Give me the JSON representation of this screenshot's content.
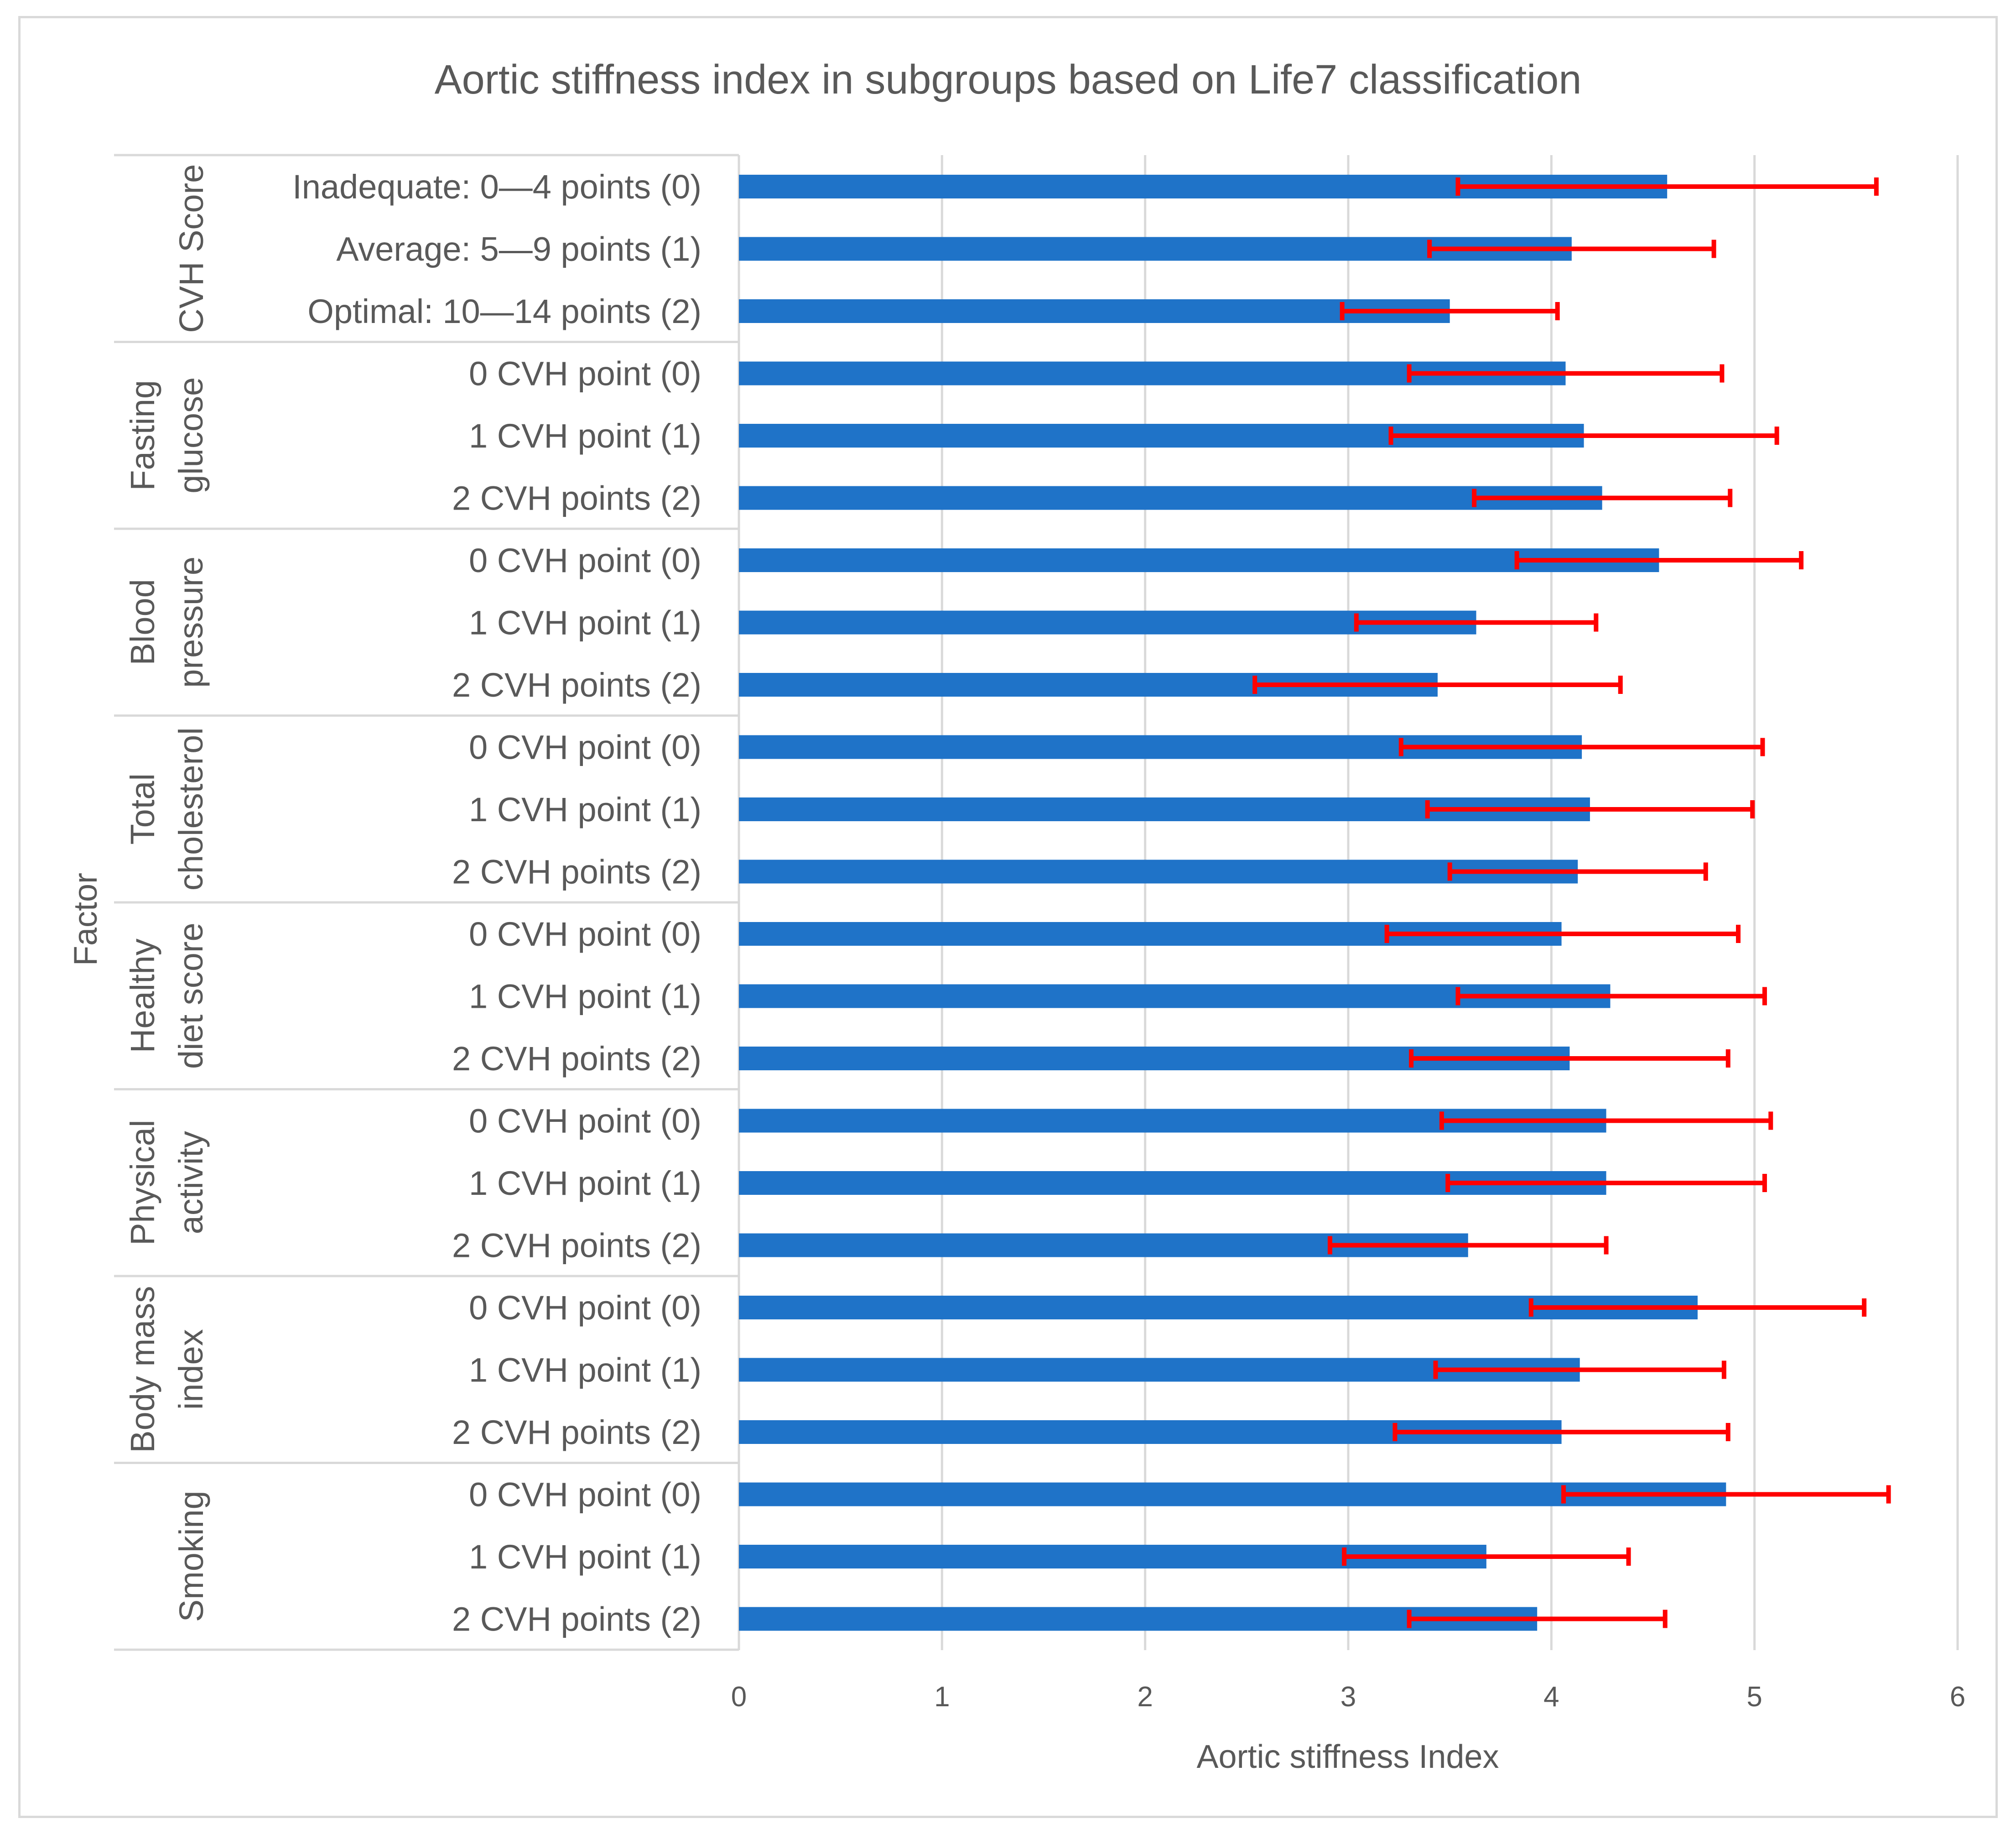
{
  "chart_data": {
    "type": "bar",
    "orientation": "horizontal",
    "title": "Aortic stiffness index in subgroups based on Life7 classification",
    "xlabel": "Aortic stiffness Index",
    "ylabel": "Factor",
    "xlim": [
      0,
      6
    ],
    "xticks": [
      "0",
      "1",
      "2",
      "3",
      "4",
      "5",
      "6"
    ],
    "grid": true,
    "legend": "none",
    "colors": {
      "bar": "#1f73c8",
      "error_bar": "#ff0000",
      "grid": "#d9d9d9",
      "text": "#595959"
    },
    "groups": [
      {
        "name": "CVH Score",
        "name_lines": [
          "CVH Score"
        ],
        "items": [
          {
            "label": "Inadequate: 0—4 points (0)",
            "value": 4.57,
            "low": 3.54,
            "high": 5.6
          },
          {
            "label": "Average: 5—9 points (1)",
            "value": 4.1,
            "low": 3.4,
            "high": 4.8
          },
          {
            "label": "Optimal: 10—14 points (2)",
            "value": 3.5,
            "low": 2.97,
            "high": 4.03
          }
        ]
      },
      {
        "name": "Fasting glucose",
        "name_lines": [
          "Fasting",
          "glucose"
        ],
        "items": [
          {
            "label": "0 CVH point (0)",
            "value": 4.07,
            "low": 3.3,
            "high": 4.84
          },
          {
            "label": "1 CVH point (1)",
            "value": 4.16,
            "low": 3.21,
            "high": 5.11
          },
          {
            "label": "2 CVH points (2)",
            "value": 4.25,
            "low": 3.62,
            "high": 4.88
          }
        ]
      },
      {
        "name": "Blood pressure",
        "name_lines": [
          "Blood",
          "pressure"
        ],
        "items": [
          {
            "label": "0 CVH point (0)",
            "value": 4.53,
            "low": 3.83,
            "high": 5.23
          },
          {
            "label": "1 CVH point (1)",
            "value": 3.63,
            "low": 3.04,
            "high": 4.22
          },
          {
            "label": "2 CVH points (2)",
            "value": 3.44,
            "low": 2.54,
            "high": 4.34
          }
        ]
      },
      {
        "name": "Total cholesterol",
        "name_lines": [
          "Total",
          "cholesterol"
        ],
        "items": [
          {
            "label": "0 CVH point (0)",
            "value": 4.15,
            "low": 3.26,
            "high": 5.04
          },
          {
            "label": "1 CVH point (1)",
            "value": 4.19,
            "low": 3.39,
            "high": 4.99
          },
          {
            "label": "2 CVH points (2)",
            "value": 4.13,
            "low": 3.5,
            "high": 4.76
          }
        ]
      },
      {
        "name": "Healthy diet score",
        "name_lines": [
          "Healthy",
          "diet score"
        ],
        "items": [
          {
            "label": "0 CVH point (0)",
            "value": 4.05,
            "low": 3.19,
            "high": 4.92
          },
          {
            "label": "1 CVH point (1)",
            "value": 4.29,
            "low": 3.54,
            "high": 5.05
          },
          {
            "label": "2 CVH points (2)",
            "value": 4.09,
            "low": 3.31,
            "high": 4.87
          }
        ]
      },
      {
        "name": "Physical activity",
        "name_lines": [
          "Physical",
          "activity"
        ],
        "items": [
          {
            "label": "0 CVH point (0)",
            "value": 4.27,
            "low": 3.46,
            "high": 5.08
          },
          {
            "label": "1 CVH point (1)",
            "value": 4.27,
            "low": 3.49,
            "high": 5.05
          },
          {
            "label": "2 CVH points (2)",
            "value": 3.59,
            "low": 2.91,
            "high": 4.27
          }
        ]
      },
      {
        "name": "Body mass index",
        "name_lines": [
          "Body mass",
          "index"
        ],
        "items": [
          {
            "label": "0 CVH point (0)",
            "value": 4.72,
            "low": 3.9,
            "high": 5.54
          },
          {
            "label": "1 CVH point (1)",
            "value": 4.14,
            "low": 3.43,
            "high": 4.85
          },
          {
            "label": "2 CVH points (2)",
            "value": 4.05,
            "low": 3.23,
            "high": 4.87
          }
        ]
      },
      {
        "name": "Smoking",
        "name_lines": [
          "Smoking"
        ],
        "items": [
          {
            "label": "0 CVH point (0)",
            "value": 4.86,
            "low": 4.06,
            "high": 5.66
          },
          {
            "label": "1 CVH point (1)",
            "value": 3.68,
            "low": 2.98,
            "high": 4.38
          },
          {
            "label": "2 CVH points (2)",
            "value": 3.93,
            "low": 3.3,
            "high": 4.56
          }
        ]
      }
    ]
  }
}
